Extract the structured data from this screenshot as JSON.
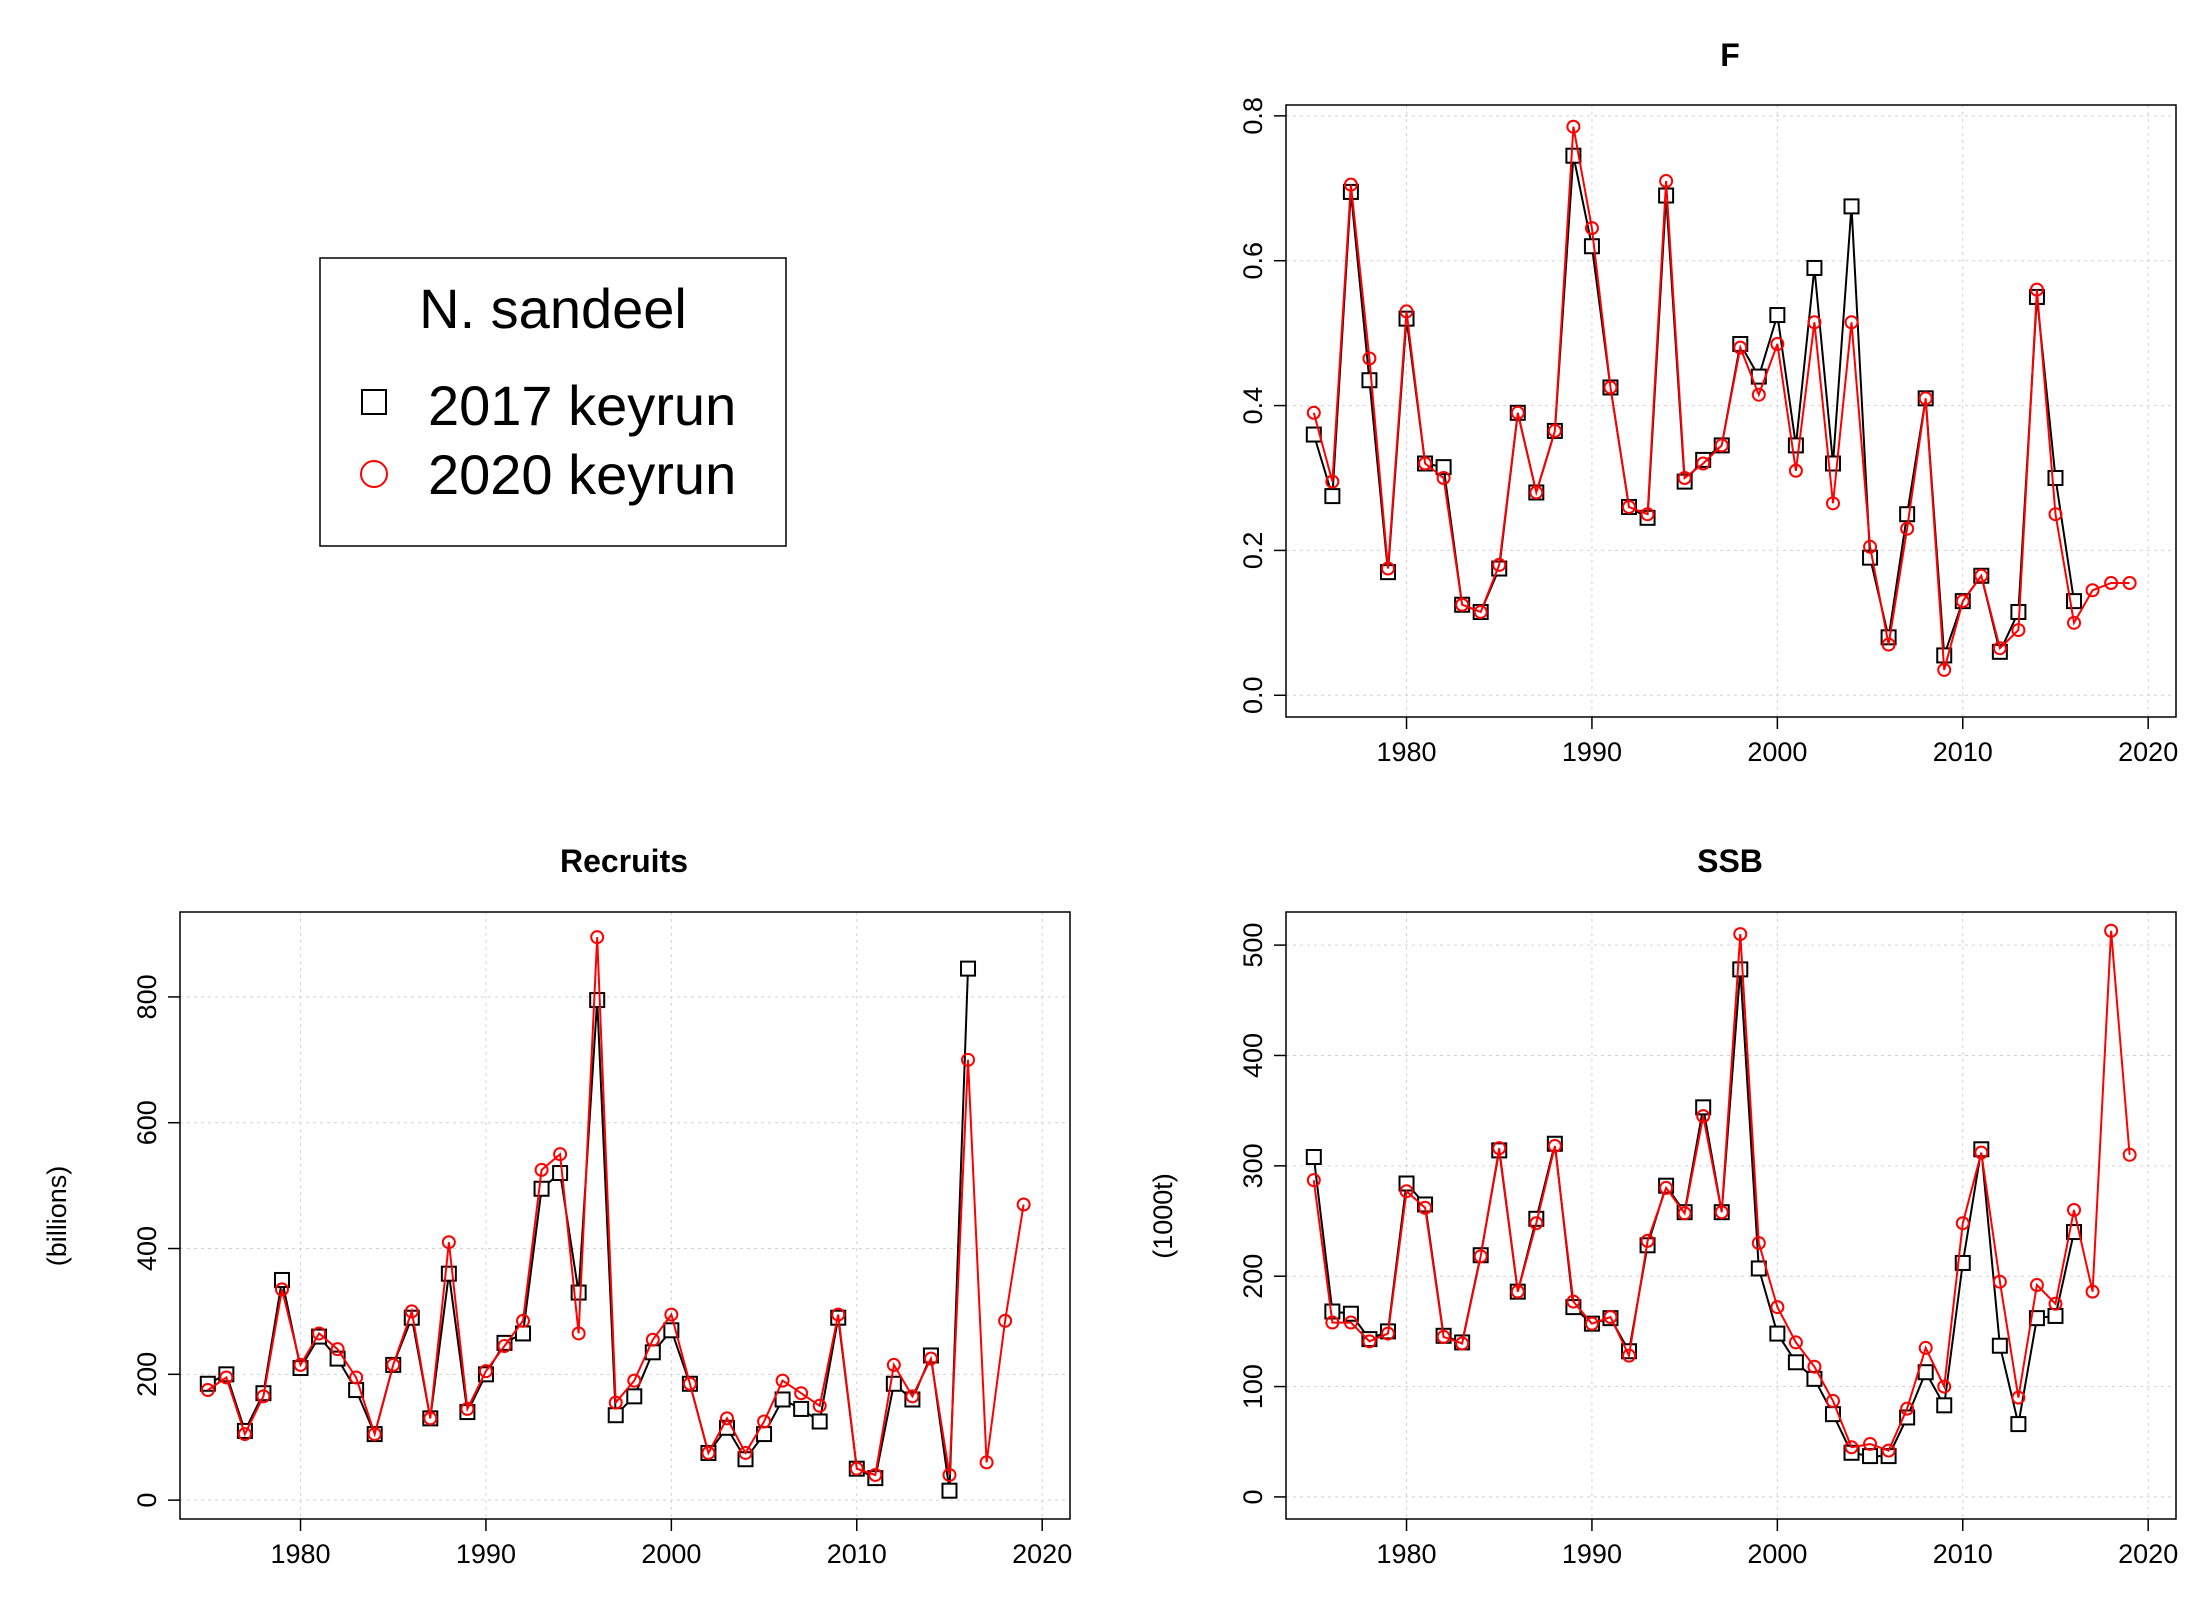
{
  "legend": {
    "title": "N. sandeel",
    "entries": [
      {
        "label": "2017 keyrun",
        "color": "#000000",
        "symbol": "open-square"
      },
      {
        "label": "2020 keyrun",
        "color": "#ff0000",
        "symbol": "open-circle"
      }
    ]
  },
  "chart_data": [
    {
      "type": "line",
      "title": "F",
      "xlabel": "",
      "ylabel": "",
      "xlim": [
        1973.5,
        2021.5
      ],
      "ylim": [
        -0.03,
        0.815
      ],
      "xticks": [
        1980,
        1990,
        2000,
        2010,
        2020
      ],
      "yticks": [
        0.0,
        0.2,
        0.4,
        0.6,
        0.8
      ],
      "ytick_labels": [
        "0.0",
        "0.2",
        "0.4",
        "0.6",
        "0.8"
      ],
      "grid": true,
      "series": [
        {
          "name": "2017 keyrun",
          "color": "#000000",
          "marker": "square",
          "x": [
            1975,
            1976,
            1977,
            1978,
            1979,
            1980,
            1981,
            1982,
            1983,
            1984,
            1985,
            1986,
            1987,
            1988,
            1989,
            1990,
            1991,
            1992,
            1993,
            1994,
            1995,
            1996,
            1997,
            1998,
            1999,
            2000,
            2001,
            2002,
            2003,
            2004,
            2005,
            2006,
            2007,
            2008,
            2009,
            2010,
            2011,
            2012,
            2013,
            2014,
            2015,
            2016
          ],
          "y": [
            0.36,
            0.275,
            0.695,
            0.435,
            0.17,
            0.52,
            0.32,
            0.315,
            0.125,
            0.115,
            0.175,
            0.39,
            0.28,
            0.365,
            0.745,
            0.62,
            0.425,
            0.26,
            0.245,
            0.69,
            0.295,
            0.325,
            0.345,
            0.485,
            0.44,
            0.525,
            0.345,
            0.59,
            0.32,
            0.675,
            0.19,
            0.08,
            0.25,
            0.41,
            0.055,
            0.13,
            0.165,
            0.06,
            0.115,
            0.55,
            0.3,
            0.13
          ]
        },
        {
          "name": "2020 keyrun",
          "color": "#ff0000",
          "marker": "circle",
          "x": [
            1975,
            1976,
            1977,
            1978,
            1979,
            1980,
            1981,
            1982,
            1983,
            1984,
            1985,
            1986,
            1987,
            1988,
            1989,
            1990,
            1991,
            1992,
            1993,
            1994,
            1995,
            1996,
            1997,
            1998,
            1999,
            2000,
            2001,
            2002,
            2003,
            2004,
            2005,
            2006,
            2007,
            2008,
            2009,
            2010,
            2011,
            2012,
            2013,
            2014,
            2015,
            2016,
            2017,
            2018,
            2019
          ],
          "y": [
            0.39,
            0.295,
            0.705,
            0.465,
            0.175,
            0.53,
            0.32,
            0.3,
            0.125,
            0.115,
            0.18,
            0.39,
            0.28,
            0.365,
            0.785,
            0.645,
            0.425,
            0.26,
            0.25,
            0.71,
            0.3,
            0.32,
            0.345,
            0.48,
            0.415,
            0.485,
            0.31,
            0.515,
            0.265,
            0.515,
            0.205,
            0.07,
            0.23,
            0.41,
            0.035,
            0.13,
            0.165,
            0.065,
            0.09,
            0.56,
            0.25,
            0.1,
            0.145,
            0.155,
            0.155
          ]
        }
      ]
    },
    {
      "type": "line",
      "title": "Recruits",
      "xlabel": "",
      "ylabel": "(billions)",
      "xlim": [
        1973.5,
        2021.5
      ],
      "ylim": [
        -30,
        935
      ],
      "xticks": [
        1980,
        1990,
        2000,
        2010,
        2020
      ],
      "yticks": [
        0,
        200,
        400,
        600,
        800
      ],
      "ytick_labels": [
        "0",
        "200",
        "400",
        "600",
        "800"
      ],
      "grid": true,
      "series": [
        {
          "name": "2017 keyrun",
          "color": "#000000",
          "marker": "square",
          "x": [
            1975,
            1976,
            1977,
            1978,
            1979,
            1980,
            1981,
            1982,
            1983,
            1984,
            1985,
            1986,
            1987,
            1988,
            1989,
            1990,
            1991,
            1992,
            1993,
            1994,
            1995,
            1996,
            1997,
            1998,
            1999,
            2000,
            2001,
            2002,
            2003,
            2004,
            2005,
            2006,
            2007,
            2008,
            2009,
            2010,
            2011,
            2012,
            2013,
            2014,
            2015,
            2016
          ],
          "y": [
            185,
            200,
            110,
            170,
            350,
            210,
            260,
            225,
            175,
            105,
            215,
            290,
            130,
            360,
            140,
            200,
            250,
            265,
            495,
            520,
            330,
            795,
            135,
            165,
            235,
            270,
            185,
            75,
            115,
            65,
            105,
            160,
            145,
            125,
            290,
            50,
            35,
            185,
            160,
            230,
            15,
            845
          ]
        },
        {
          "name": "2020 keyrun",
          "color": "#ff0000",
          "marker": "circle",
          "x": [
            1975,
            1976,
            1977,
            1978,
            1979,
            1980,
            1981,
            1982,
            1983,
            1984,
            1985,
            1986,
            1987,
            1988,
            1989,
            1990,
            1991,
            1992,
            1993,
            1994,
            1995,
            1996,
            1997,
            1998,
            1999,
            2000,
            2001,
            2002,
            2003,
            2004,
            2005,
            2006,
            2007,
            2008,
            2009,
            2010,
            2011,
            2012,
            2013,
            2014,
            2015,
            2016,
            2017,
            2018,
            2019
          ],
          "y": [
            175,
            195,
            105,
            165,
            335,
            215,
            265,
            240,
            195,
            105,
            215,
            300,
            130,
            410,
            145,
            205,
            245,
            285,
            525,
            550,
            265,
            895,
            155,
            190,
            255,
            295,
            185,
            75,
            130,
            75,
            125,
            190,
            170,
            150,
            295,
            50,
            40,
            215,
            165,
            225,
            40,
            700,
            60,
            285,
            470
          ]
        }
      ]
    },
    {
      "type": "line",
      "title": "SSB",
      "xlabel": "",
      "ylabel": "(1000t)",
      "xlim": [
        1973.5,
        2021.5
      ],
      "ylim": [
        -20,
        530
      ],
      "xticks": [
        1980,
        1990,
        2000,
        2010,
        2020
      ],
      "yticks": [
        0,
        100,
        200,
        300,
        400,
        500
      ],
      "ytick_labels": [
        "0",
        "100",
        "200",
        "300",
        "400",
        "500"
      ],
      "grid": true,
      "series": [
        {
          "name": "2017 keyrun",
          "color": "#000000",
          "marker": "square",
          "x": [
            1975,
            1976,
            1977,
            1978,
            1979,
            1980,
            1981,
            1982,
            1983,
            1984,
            1985,
            1986,
            1987,
            1988,
            1989,
            1990,
            1991,
            1992,
            1993,
            1994,
            1995,
            1996,
            1997,
            1998,
            1999,
            2000,
            2001,
            2002,
            2003,
            2004,
            2005,
            2006,
            2007,
            2008,
            2009,
            2010,
            2011,
            2012,
            2013,
            2014,
            2015,
            2016
          ],
          "y": [
            308,
            168,
            166,
            143,
            150,
            284,
            265,
            146,
            140,
            219,
            314,
            186,
            252,
            320,
            172,
            157,
            162,
            132,
            228,
            282,
            258,
            353,
            258,
            478,
            207,
            148,
            122,
            107,
            75,
            40,
            37,
            37,
            72,
            113,
            83,
            212,
            315,
            137,
            66,
            162,
            164,
            240
          ]
        },
        {
          "name": "2020 keyrun",
          "color": "#ff0000",
          "marker": "circle",
          "x": [
            1975,
            1976,
            1977,
            1978,
            1979,
            1980,
            1981,
            1982,
            1983,
            1984,
            1985,
            1986,
            1987,
            1988,
            1989,
            1990,
            1991,
            1992,
            1993,
            1994,
            1995,
            1996,
            1997,
            1998,
            1999,
            2000,
            2001,
            2002,
            2003,
            2004,
            2005,
            2006,
            2007,
            2008,
            2009,
            2010,
            2011,
            2012,
            2013,
            2014,
            2015,
            2016,
            2017,
            2018,
            2019
          ],
          "y": [
            287,
            158,
            158,
            141,
            148,
            277,
            262,
            145,
            139,
            218,
            316,
            186,
            248,
            318,
            177,
            157,
            163,
            128,
            232,
            280,
            257,
            345,
            258,
            510,
            230,
            172,
            140,
            118,
            87,
            45,
            48,
            42,
            80,
            135,
            100,
            248,
            312,
            195,
            90,
            192,
            175,
            260,
            186,
            513,
            310
          ]
        }
      ]
    }
  ]
}
